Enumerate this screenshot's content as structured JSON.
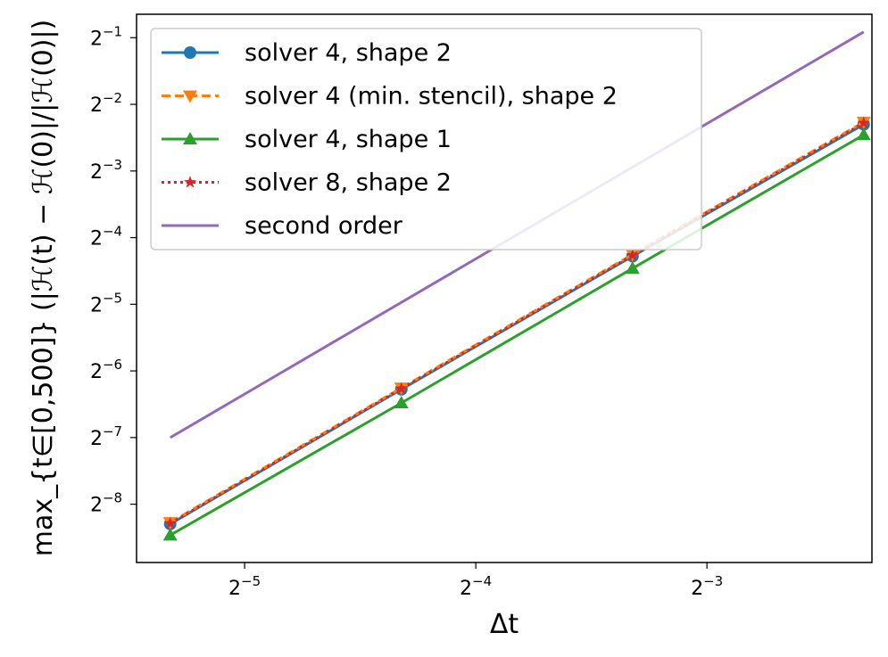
{
  "chart_data": {
    "type": "line",
    "xlabel": "Δt",
    "ylabel": "max_{t∈[0,500]} (|ℋ(t) − ℋ(0)|/|ℋ(0)|)",
    "x_scale": "log2",
    "y_scale": "log2",
    "xlim": [
      0.0226,
      0.205
    ],
    "ylim": [
      0.00213,
      0.638
    ],
    "x_ticks": [
      0.03125,
      0.0625,
      0.125
    ],
    "x_tick_labels": [
      {
        "base": "2",
        "exp": "−5"
      },
      {
        "base": "2",
        "exp": "−4"
      },
      {
        "base": "2",
        "exp": "−3"
      }
    ],
    "y_ticks": [
      0.00390625,
      0.0078125,
      0.015625,
      0.03125,
      0.0625,
      0.125,
      0.25,
      0.5
    ],
    "y_tick_labels": [
      {
        "base": "2",
        "exp": "−8"
      },
      {
        "base": "2",
        "exp": "−7"
      },
      {
        "base": "2",
        "exp": "−6"
      },
      {
        "base": "2",
        "exp": "−5"
      },
      {
        "base": "2",
        "exp": "−4"
      },
      {
        "base": "2",
        "exp": "−3"
      },
      {
        "base": "2",
        "exp": "−2"
      },
      {
        "base": "2",
        "exp": "−1"
      }
    ],
    "grid": false,
    "legend_position": "top-left",
    "series": [
      {
        "name": "solver 4, shape 2",
        "color": "#1f77b4",
        "line_style": "solid",
        "marker": "circle",
        "x": [
          0.025,
          0.05,
          0.1,
          0.2
        ],
        "y": [
          0.00318,
          0.0129,
          0.0515,
          0.203
        ]
      },
      {
        "name": "solver 4 (min. stencil), shape 2",
        "color": "#ff7f0e",
        "line_style": "dashed",
        "marker": "triangle-down",
        "x": [
          0.025,
          0.05,
          0.1,
          0.2
        ],
        "y": [
          0.00323,
          0.0131,
          0.0525,
          0.208
        ]
      },
      {
        "name": "solver 4, shape 1",
        "color": "#2ca02c",
        "line_style": "solid",
        "marker": "triangle-up",
        "x": [
          0.025,
          0.05,
          0.1,
          0.2
        ],
        "y": [
          0.00283,
          0.0112,
          0.0454,
          0.182
        ]
      },
      {
        "name": "solver 8, shape 2",
        "color": "#d62728",
        "line_style": "dotted",
        "marker": "star",
        "x": [
          0.025,
          0.05,
          0.1,
          0.2
        ],
        "y": [
          0.0032,
          0.013,
          0.052,
          0.206
        ]
      },
      {
        "name": "second order",
        "color": "#9467bd",
        "line_style": "solid",
        "marker": "none",
        "x": [
          0.025,
          0.2
        ],
        "y": [
          0.00781,
          0.531
        ]
      }
    ]
  }
}
